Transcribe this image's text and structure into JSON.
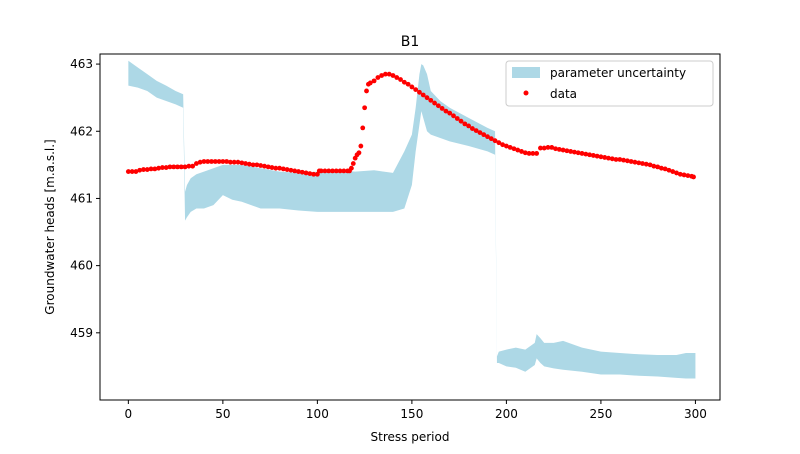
{
  "chart_data": {
    "type": "scatter",
    "title": "B1",
    "xlabel": "Stress period",
    "ylabel": "Groundwater heads [m.a.s.l.]",
    "xlim": [
      -15,
      313
    ],
    "ylim": [
      458.0,
      463.15
    ],
    "xticks": [
      0,
      50,
      100,
      150,
      200,
      250,
      300
    ],
    "yticks": [
      459,
      460,
      461,
      462,
      463
    ],
    "legend_position": "top-right",
    "colors": {
      "band": "#add8e6",
      "data": "#ff0000"
    },
    "band": {
      "name": "parameter uncertainty",
      "x": [
        0,
        5,
        10,
        15,
        20,
        25,
        29,
        30,
        31,
        33,
        36,
        40,
        45,
        50,
        55,
        60,
        70,
        80,
        90,
        100,
        110,
        120,
        130,
        140,
        146,
        150,
        152,
        154,
        155,
        156,
        158,
        160,
        165,
        170,
        180,
        190,
        194,
        195,
        196,
        200,
        205,
        210,
        215,
        216,
        218,
        220,
        225,
        230,
        240,
        250,
        260,
        270,
        280,
        290,
        295,
        300
      ],
      "upper": [
        463.05,
        462.95,
        462.85,
        462.75,
        462.68,
        462.6,
        462.55,
        461.1,
        461.2,
        461.3,
        461.36,
        461.4,
        461.45,
        461.5,
        461.5,
        461.5,
        461.45,
        461.4,
        461.38,
        461.4,
        461.42,
        461.4,
        461.42,
        461.38,
        461.7,
        461.95,
        462.35,
        462.85,
        463.0,
        462.98,
        462.85,
        462.6,
        462.45,
        462.35,
        462.2,
        462.05,
        462.0,
        458.65,
        458.72,
        458.75,
        458.78,
        458.75,
        458.85,
        458.98,
        458.92,
        458.85,
        458.85,
        458.88,
        458.78,
        458.72,
        458.7,
        458.68,
        458.67,
        458.67,
        458.7,
        458.7
      ],
      "lower": [
        462.68,
        462.65,
        462.6,
        462.5,
        462.45,
        462.4,
        462.35,
        460.67,
        460.72,
        460.8,
        460.85,
        460.85,
        460.9,
        461.05,
        460.98,
        460.95,
        460.85,
        460.85,
        460.82,
        460.8,
        460.8,
        460.8,
        460.8,
        460.8,
        460.85,
        461.2,
        461.7,
        462.1,
        462.3,
        462.2,
        462.0,
        461.95,
        461.9,
        461.85,
        461.78,
        461.7,
        461.65,
        458.55,
        458.55,
        458.5,
        458.48,
        458.42,
        458.52,
        458.62,
        458.55,
        458.5,
        458.47,
        458.45,
        458.42,
        458.38,
        458.38,
        458.36,
        458.35,
        458.33,
        458.32,
        458.32
      ]
    },
    "series": [
      {
        "name": "data",
        "points": [
          [
            0,
            461.4
          ],
          [
            2,
            461.4
          ],
          [
            4,
            461.4
          ],
          [
            6,
            461.42
          ],
          [
            8,
            461.43
          ],
          [
            10,
            461.43
          ],
          [
            12,
            461.44
          ],
          [
            14,
            461.44
          ],
          [
            16,
            461.45
          ],
          [
            18,
            461.46
          ],
          [
            20,
            461.46
          ],
          [
            22,
            461.47
          ],
          [
            24,
            461.47
          ],
          [
            26,
            461.47
          ],
          [
            28,
            461.47
          ],
          [
            30,
            461.47
          ],
          [
            32,
            461.48
          ],
          [
            34,
            461.48
          ],
          [
            36,
            461.52
          ],
          [
            38,
            461.54
          ],
          [
            40,
            461.55
          ],
          [
            42,
            461.55
          ],
          [
            44,
            461.55
          ],
          [
            46,
            461.55
          ],
          [
            48,
            461.55
          ],
          [
            50,
            461.55
          ],
          [
            52,
            461.55
          ],
          [
            54,
            461.54
          ],
          [
            56,
            461.54
          ],
          [
            58,
            461.54
          ],
          [
            60,
            461.53
          ],
          [
            62,
            461.52
          ],
          [
            64,
            461.51
          ],
          [
            66,
            461.5
          ],
          [
            68,
            461.5
          ],
          [
            70,
            461.49
          ],
          [
            72,
            461.48
          ],
          [
            74,
            461.47
          ],
          [
            76,
            461.46
          ],
          [
            78,
            461.45
          ],
          [
            80,
            461.45
          ],
          [
            82,
            461.44
          ],
          [
            84,
            461.43
          ],
          [
            86,
            461.42
          ],
          [
            88,
            461.41
          ],
          [
            90,
            461.4
          ],
          [
            92,
            461.39
          ],
          [
            94,
            461.38
          ],
          [
            96,
            461.37
          ],
          [
            98,
            461.36
          ],
          [
            100,
            461.36
          ],
          [
            101,
            461.41
          ],
          [
            102,
            461.41
          ],
          [
            104,
            461.41
          ],
          [
            106,
            461.41
          ],
          [
            108,
            461.41
          ],
          [
            110,
            461.41
          ],
          [
            112,
            461.41
          ],
          [
            114,
            461.41
          ],
          [
            116,
            461.41
          ],
          [
            117,
            461.41
          ],
          [
            118,
            461.45
          ],
          [
            119,
            461.52
          ],
          [
            120,
            461.6
          ],
          [
            121,
            461.65
          ],
          [
            122,
            461.68
          ],
          [
            123,
            461.78
          ],
          [
            124,
            462.05
          ],
          [
            125,
            462.35
          ],
          [
            126,
            462.6
          ],
          [
            127,
            462.7
          ],
          [
            128,
            462.72
          ],
          [
            130,
            462.75
          ],
          [
            132,
            462.8
          ],
          [
            134,
            462.83
          ],
          [
            136,
            462.85
          ],
          [
            138,
            462.85
          ],
          [
            140,
            462.83
          ],
          [
            142,
            462.8
          ],
          [
            144,
            462.77
          ],
          [
            146,
            462.73
          ],
          [
            148,
            462.7
          ],
          [
            150,
            462.66
          ],
          [
            152,
            462.62
          ],
          [
            154,
            462.58
          ],
          [
            156,
            462.54
          ],
          [
            158,
            462.5
          ],
          [
            160,
            462.46
          ],
          [
            162,
            462.42
          ],
          [
            164,
            462.38
          ],
          [
            166,
            462.34
          ],
          [
            168,
            462.3
          ],
          [
            170,
            462.27
          ],
          [
            172,
            462.23
          ],
          [
            174,
            462.19
          ],
          [
            176,
            462.15
          ],
          [
            178,
            462.11
          ],
          [
            180,
            462.08
          ],
          [
            182,
            462.04
          ],
          [
            184,
            462.01
          ],
          [
            186,
            461.98
          ],
          [
            188,
            461.95
          ],
          [
            190,
            461.92
          ],
          [
            192,
            461.89
          ],
          [
            194,
            461.86
          ],
          [
            196,
            461.83
          ],
          [
            198,
            461.8
          ],
          [
            200,
            461.78
          ],
          [
            202,
            461.76
          ],
          [
            204,
            461.74
          ],
          [
            206,
            461.72
          ],
          [
            208,
            461.7
          ],
          [
            210,
            461.68
          ],
          [
            212,
            461.67
          ],
          [
            214,
            461.67
          ],
          [
            216,
            461.67
          ],
          [
            218,
            461.75
          ],
          [
            220,
            461.75
          ],
          [
            222,
            461.76
          ],
          [
            224,
            461.76
          ],
          [
            226,
            461.74
          ],
          [
            228,
            461.73
          ],
          [
            230,
            461.72
          ],
          [
            232,
            461.71
          ],
          [
            234,
            461.7
          ],
          [
            236,
            461.69
          ],
          [
            238,
            461.68
          ],
          [
            240,
            461.67
          ],
          [
            242,
            461.66
          ],
          [
            244,
            461.65
          ],
          [
            246,
            461.64
          ],
          [
            248,
            461.63
          ],
          [
            250,
            461.62
          ],
          [
            252,
            461.61
          ],
          [
            254,
            461.6
          ],
          [
            256,
            461.59
          ],
          [
            258,
            461.58
          ],
          [
            260,
            461.58
          ],
          [
            262,
            461.57
          ],
          [
            264,
            461.56
          ],
          [
            266,
            461.55
          ],
          [
            268,
            461.54
          ],
          [
            270,
            461.53
          ],
          [
            272,
            461.52
          ],
          [
            274,
            461.51
          ],
          [
            276,
            461.5
          ],
          [
            278,
            461.48
          ],
          [
            280,
            461.47
          ],
          [
            282,
            461.45
          ],
          [
            284,
            461.44
          ],
          [
            286,
            461.42
          ],
          [
            288,
            461.4
          ],
          [
            290,
            461.38
          ],
          [
            292,
            461.36
          ],
          [
            294,
            461.35
          ],
          [
            296,
            461.34
          ],
          [
            298,
            461.33
          ],
          [
            299,
            461.32
          ]
        ]
      }
    ]
  }
}
